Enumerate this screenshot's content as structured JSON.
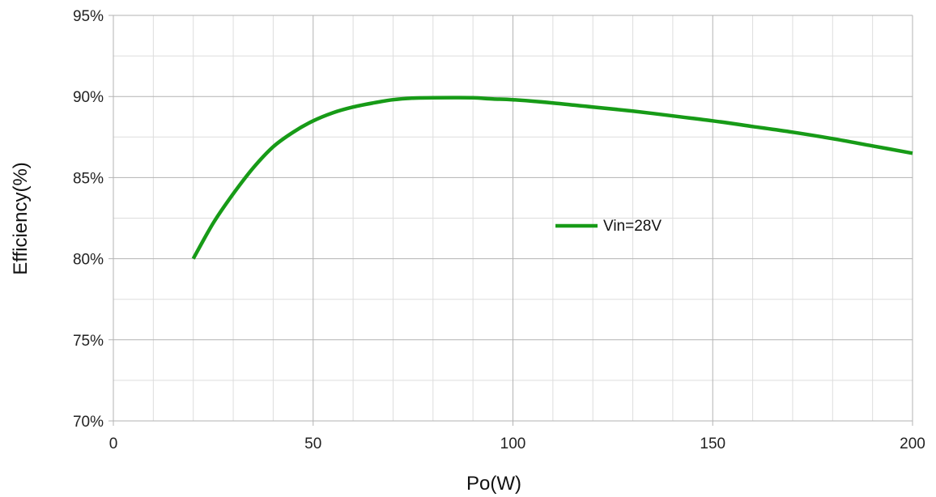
{
  "chart_data": {
    "type": "line",
    "title": "",
    "xlabel": "Po(W)",
    "ylabel": "Efficiency(%)",
    "xlim": [
      0,
      200
    ],
    "ylim": [
      70,
      95
    ],
    "x_ticks": [
      0,
      50,
      100,
      150,
      200
    ],
    "x_tick_labels": [
      "0",
      "50",
      "100",
      "150",
      "200"
    ],
    "y_ticks": [
      70,
      75,
      80,
      85,
      90,
      95
    ],
    "y_tick_labels": [
      "70%",
      "75%",
      "80%",
      "85%",
      "90%",
      "95%"
    ],
    "x_minor_step": 10,
    "y_minor_step": 2.5,
    "grid": true,
    "legend_position": "center-right",
    "series": [
      {
        "name": "Vin=28V",
        "color": "#179b17",
        "x": [
          20,
          25,
          30,
          35,
          40,
          45,
          50,
          55,
          60,
          65,
          70,
          75,
          80,
          85,
          90,
          95,
          100,
          110,
          120,
          130,
          140,
          150,
          160,
          170,
          180,
          190,
          200
        ],
        "y": [
          80.0,
          82.2,
          84.0,
          85.6,
          86.9,
          87.8,
          88.5,
          89.0,
          89.35,
          89.6,
          89.8,
          89.9,
          89.92,
          89.93,
          89.92,
          89.85,
          89.8,
          89.6,
          89.35,
          89.1,
          88.8,
          88.5,
          88.15,
          87.8,
          87.4,
          86.95,
          86.5
        ]
      }
    ]
  }
}
